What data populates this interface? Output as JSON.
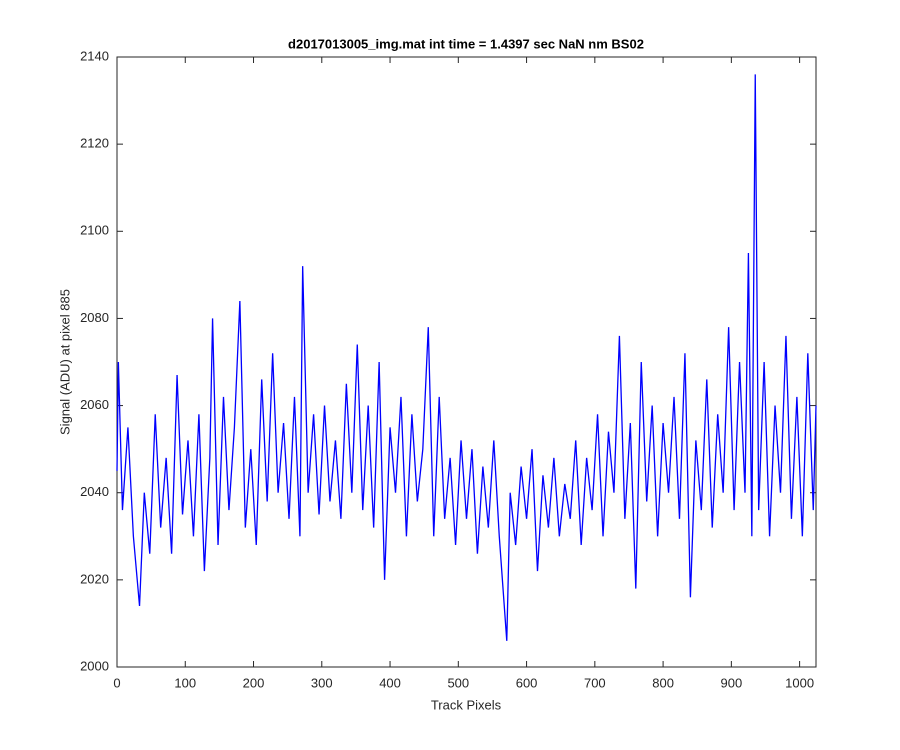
{
  "chart_data": {
    "type": "line",
    "title": "d2017013005_img.mat int time = 1.4397 sec  NaN nm BS02",
    "x_label": "Track Pixels",
    "y_label": "Signal (ADU) at pixel 885",
    "x": [
      0,
      2,
      8,
      16,
      24,
      33,
      40,
      48,
      56,
      64,
      72,
      80,
      88,
      96,
      104,
      112,
      120,
      128,
      136,
      140,
      148,
      156,
      164,
      172,
      180,
      188,
      196,
      204,
      212,
      220,
      228,
      236,
      244,
      252,
      260,
      268,
      272,
      280,
      288,
      296,
      304,
      312,
      320,
      328,
      336,
      344,
      352,
      360,
      368,
      376,
      384,
      392,
      400,
      408,
      416,
      424,
      432,
      440,
      448,
      456,
      464,
      472,
      480,
      488,
      496,
      504,
      512,
      520,
      528,
      536,
      544,
      552,
      560,
      571,
      576,
      584,
      592,
      600,
      608,
      616,
      624,
      632,
      640,
      648,
      656,
      664,
      672,
      680,
      688,
      696,
      704,
      712,
      720,
      728,
      736,
      744,
      752,
      760,
      768,
      776,
      784,
      792,
      800,
      808,
      816,
      824,
      832,
      840,
      848,
      856,
      864,
      872,
      880,
      888,
      896,
      904,
      912,
      920,
      925,
      930,
      935,
      940,
      948,
      956,
      964,
      972,
      980,
      988,
      996,
      1004,
      1012,
      1020,
      1024
    ],
    "series": [
      {
        "name": "signal",
        "color": "#0000ff",
        "values": [
          2045,
          2070,
          2036,
          2055,
          2030,
          2014,
          2040,
          2026,
          2058,
          2032,
          2048,
          2026,
          2067,
          2035,
          2052,
          2030,
          2058,
          2022,
          2048,
          2080,
          2028,
          2062,
          2036,
          2055,
          2084,
          2032,
          2050,
          2028,
          2066,
          2038,
          2072,
          2040,
          2056,
          2034,
          2062,
          2030,
          2092,
          2040,
          2058,
          2035,
          2060,
          2038,
          2052,
          2034,
          2065,
          2040,
          2074,
          2036,
          2060,
          2032,
          2070,
          2020,
          2055,
          2040,
          2062,
          2030,
          2058,
          2038,
          2050,
          2078,
          2030,
          2062,
          2034,
          2048,
          2028,
          2052,
          2034,
          2050,
          2026,
          2046,
          2032,
          2052,
          2030,
          2006,
          2040,
          2028,
          2046,
          2034,
          2050,
          2022,
          2044,
          2032,
          2048,
          2030,
          2042,
          2034,
          2052,
          2028,
          2048,
          2036,
          2058,
          2030,
          2054,
          2040,
          2076,
          2034,
          2056,
          2018,
          2070,
          2038,
          2060,
          2030,
          2056,
          2040,
          2062,
          2034,
          2072,
          2016,
          2052,
          2036,
          2066,
          2032,
          2058,
          2040,
          2078,
          2036,
          2070,
          2040,
          2095,
          2030,
          2136,
          2036,
          2070,
          2030,
          2060,
          2040,
          2076,
          2034,
          2062,
          2030,
          2072,
          2036,
          2060
        ]
      }
    ],
    "xlim": [
      0,
      1024
    ],
    "xticks": [
      0,
      100,
      200,
      300,
      400,
      500,
      600,
      700,
      800,
      900,
      1000
    ],
    "ylim": [
      2000,
      2140
    ],
    "yticks": [
      2000,
      2020,
      2040,
      2060,
      2080,
      2100,
      2120,
      2140
    ]
  }
}
